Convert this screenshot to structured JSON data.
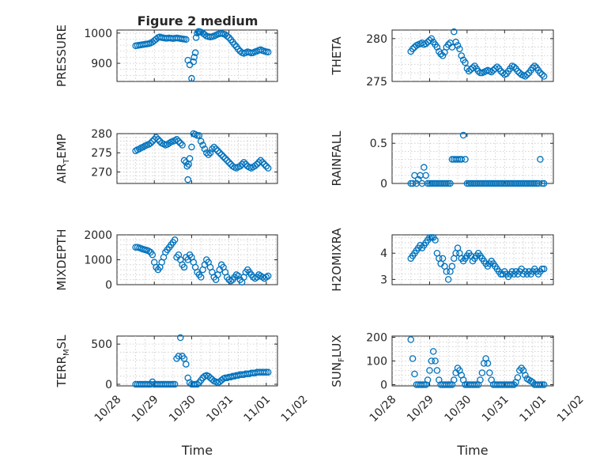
{
  "figure": {
    "title": "Figure 2 medium"
  },
  "chart_data": [
    {
      "type": "scatter",
      "id": "pressure",
      "title": "Figure 2 medium",
      "ylabel": "PRESSURE",
      "xlabel": "",
      "ylim": [
        840,
        1010
      ],
      "yticks": [
        900,
        1000
      ],
      "xlim": [
        0,
        4.3
      ],
      "grid": true,
      "x": [
        0.5,
        0.55,
        0.6,
        0.65,
        0.7,
        0.75,
        0.8,
        0.85,
        0.9,
        0.95,
        1.0,
        1.05,
        1.1,
        1.15,
        1.2,
        1.25,
        1.3,
        1.35,
        1.4,
        1.45,
        1.5,
        1.55,
        1.6,
        1.65,
        1.7,
        1.75,
        1.8,
        1.85,
        1.9,
        1.95,
        2.0,
        2.05,
        2.07,
        2.1,
        2.12,
        2.15,
        2.18,
        2.2,
        2.22,
        2.25,
        2.3,
        2.35,
        2.4,
        2.45,
        2.5,
        2.55,
        2.6,
        2.65,
        2.7,
        2.75,
        2.8,
        2.85,
        2.9,
        2.95,
        3.0,
        3.05,
        3.1,
        3.15,
        3.2,
        3.25,
        3.3,
        3.35,
        3.4,
        3.45,
        3.5,
        3.55,
        3.6,
        3.65,
        3.7,
        3.75,
        3.8,
        3.85,
        3.9,
        3.95,
        4.0,
        4.05
      ],
      "y": [
        958,
        959,
        960,
        961,
        962,
        963,
        964,
        965,
        967,
        970,
        975,
        980,
        985,
        987,
        985,
        984,
        983,
        983,
        984,
        983,
        982,
        983,
        984,
        983,
        982,
        981,
        980,
        979,
        910,
        895,
        850,
        905,
        920,
        935,
        985,
        1000,
        1005,
        1005,
        1004,
        1003,
        1000,
        995,
        990,
        988,
        987,
        988,
        990,
        993,
        996,
        998,
        999,
        997,
        995,
        990,
        985,
        978,
        970,
        962,
        955,
        947,
        940,
        935,
        933,
        935,
        938,
        936,
        934,
        935,
        938,
        940,
        943,
        945,
        942,
        940,
        938,
        937
      ]
    },
    {
      "type": "scatter",
      "id": "theta",
      "title": "",
      "ylabel": "THETA",
      "xlabel": "",
      "ylim": [
        275,
        281
      ],
      "yticks": [
        275,
        280
      ],
      "xlim": [
        0,
        4.3
      ],
      "grid": true,
      "x": [
        0.5,
        0.55,
        0.6,
        0.65,
        0.7,
        0.75,
        0.8,
        0.85,
        0.9,
        0.95,
        1.0,
        1.05,
        1.1,
        1.15,
        1.2,
        1.25,
        1.3,
        1.35,
        1.4,
        1.45,
        1.5,
        1.55,
        1.6,
        1.65,
        1.7,
        1.75,
        1.8,
        1.85,
        1.9,
        1.95,
        2.0,
        2.05,
        2.1,
        2.15,
        2.2,
        2.25,
        2.3,
        2.35,
        2.4,
        2.45,
        2.5,
        2.55,
        2.6,
        2.65,
        2.7,
        2.75,
        2.8,
        2.85,
        2.9,
        2.95,
        3.0,
        3.05,
        3.1,
        3.15,
        3.2,
        3.25,
        3.3,
        3.35,
        3.4,
        3.45,
        3.5,
        3.55,
        3.6,
        3.65,
        3.7,
        3.75,
        3.8,
        3.85,
        3.9,
        3.95,
        4.0,
        4.05
      ],
      "y": [
        278.5,
        278.8,
        279.0,
        279.2,
        279.3,
        279.4,
        279.5,
        279.3,
        279.4,
        279.6,
        279.8,
        280.0,
        279.6,
        279.3,
        279.0,
        278.5,
        278.2,
        278.0,
        278.4,
        279.0,
        279.3,
        279.5,
        279.0,
        280.8,
        279.6,
        279.2,
        278.8,
        278.0,
        277.5,
        277.2,
        276.5,
        276.2,
        276.4,
        276.6,
        276.8,
        276.5,
        276.2,
        276.0,
        276.0,
        276.1,
        276.2,
        276.3,
        276.2,
        276.1,
        276.3,
        276.5,
        276.7,
        276.5,
        276.2,
        276.0,
        275.8,
        275.9,
        276.2,
        276.5,
        276.8,
        276.7,
        276.5,
        276.2,
        276.0,
        275.8,
        275.7,
        275.6,
        275.8,
        276.0,
        276.3,
        276.6,
        276.8,
        276.6,
        276.3,
        276.0,
        275.8,
        275.6
      ]
    },
    {
      "type": "scatter",
      "id": "air-temp",
      "title": "",
      "ylabel": "AIR",
      "ylabel_sub": "T",
      "ylabel_rest": "EMP",
      "xlabel": "",
      "ylim": [
        267,
        280
      ],
      "yticks": [
        270,
        275,
        280
      ],
      "xlim": [
        0,
        4.3
      ],
      "grid": true,
      "x": [
        0.5,
        0.55,
        0.6,
        0.65,
        0.7,
        0.75,
        0.8,
        0.85,
        0.9,
        0.95,
        1.0,
        1.05,
        1.1,
        1.15,
        1.2,
        1.25,
        1.3,
        1.35,
        1.4,
        1.45,
        1.5,
        1.55,
        1.6,
        1.65,
        1.7,
        1.75,
        1.8,
        1.85,
        1.88,
        1.9,
        1.92,
        1.95,
        2.0,
        2.05,
        2.1,
        2.15,
        2.2,
        2.25,
        2.3,
        2.35,
        2.4,
        2.45,
        2.5,
        2.55,
        2.6,
        2.65,
        2.7,
        2.75,
        2.8,
        2.85,
        2.9,
        2.95,
        3.0,
        3.05,
        3.1,
        3.15,
        3.2,
        3.25,
        3.3,
        3.35,
        3.4,
        3.45,
        3.5,
        3.55,
        3.6,
        3.65,
        3.7,
        3.75,
        3.8,
        3.85,
        3.9,
        3.95,
        4.0,
        4.05
      ],
      "y": [
        275.5,
        275.8,
        276.0,
        276.3,
        276.5,
        276.8,
        277.0,
        277.2,
        277.5,
        278.0,
        278.5,
        279.0,
        278.5,
        278.0,
        277.5,
        277.3,
        277.0,
        277.2,
        277.5,
        277.8,
        278.0,
        278.2,
        278.5,
        278.0,
        277.5,
        277.0,
        273.0,
        272.5,
        271.5,
        268.0,
        272.0,
        273.5,
        276.5,
        280.0,
        279.8,
        279.5,
        279.5,
        278.0,
        277.0,
        276.0,
        275.0,
        274.5,
        275.0,
        276.0,
        276.5,
        276.0,
        275.5,
        275.0,
        274.5,
        274.0,
        273.5,
        273.0,
        272.5,
        272.0,
        271.5,
        271.2,
        271.0,
        271.3,
        271.5,
        272.0,
        272.5,
        272.0,
        271.5,
        271.2,
        271.0,
        271.3,
        271.6,
        272.0,
        272.5,
        273.0,
        272.5,
        272.0,
        271.5,
        271.0
      ]
    },
    {
      "type": "scatter",
      "id": "rainfall",
      "title": "",
      "ylabel": "RAINFALL",
      "xlabel": "",
      "ylim": [
        0,
        0.62
      ],
      "yticks": [
        0,
        0.5
      ],
      "xlim": [
        0,
        4.3
      ],
      "grid": true,
      "x": [
        0.5,
        0.55,
        0.6,
        0.65,
        0.7,
        0.75,
        0.8,
        0.85,
        0.9,
        0.95,
        1.0,
        1.05,
        1.1,
        1.15,
        1.2,
        1.25,
        1.3,
        1.35,
        1.4,
        1.45,
        1.5,
        1.55,
        1.6,
        1.65,
        1.7,
        1.75,
        1.8,
        1.85,
        1.9,
        1.95,
        2.0,
        2.05,
        2.1,
        2.15,
        2.2,
        2.25,
        2.3,
        2.35,
        2.4,
        2.45,
        2.5,
        2.55,
        2.6,
        2.65,
        2.7,
        2.75,
        2.8,
        2.85,
        2.9,
        2.95,
        3.0,
        3.05,
        3.1,
        3.15,
        3.2,
        3.25,
        3.3,
        3.35,
        3.4,
        3.45,
        3.5,
        3.55,
        3.6,
        3.65,
        3.7,
        3.75,
        3.8,
        3.85,
        3.9,
        3.95,
        4.0,
        4.05
      ],
      "y": [
        0,
        0,
        0.1,
        0,
        0.05,
        0.1,
        0,
        0.2,
        0.1,
        0,
        0,
        0,
        0,
        0,
        0,
        0,
        0,
        0,
        0,
        0,
        0,
        0,
        0.3,
        0.3,
        0.3,
        0.3,
        0.3,
        0.3,
        0.6,
        0.3,
        0,
        0,
        0,
        0,
        0,
        0,
        0,
        0,
        0,
        0,
        0,
        0,
        0,
        0,
        0,
        0,
        0,
        0,
        0,
        0,
        0,
        0,
        0,
        0,
        0,
        0,
        0,
        0,
        0,
        0,
        0,
        0,
        0,
        0,
        0,
        0,
        0,
        0,
        0,
        0.3,
        0,
        0
      ]
    },
    {
      "type": "scatter",
      "id": "mixdepth",
      "title": "",
      "ylabel": "MIXDEPTH",
      "xlabel": "",
      "ylim": [
        0,
        2000
      ],
      "yticks": [
        0,
        1000,
        2000
      ],
      "xlim": [
        0,
        4.3
      ],
      "grid": true,
      "x": [
        0.5,
        0.55,
        0.6,
        0.65,
        0.7,
        0.75,
        0.8,
        0.85,
        0.9,
        0.95,
        1.0,
        1.05,
        1.1,
        1.15,
        1.2,
        1.25,
        1.3,
        1.35,
        1.4,
        1.45,
        1.5,
        1.55,
        1.6,
        1.65,
        1.7,
        1.75,
        1.8,
        1.85,
        1.9,
        1.95,
        2.0,
        2.05,
        2.1,
        2.15,
        2.2,
        2.25,
        2.3,
        2.35,
        2.4,
        2.45,
        2.5,
        2.55,
        2.6,
        2.65,
        2.7,
        2.75,
        2.8,
        2.85,
        2.9,
        2.95,
        3.0,
        3.05,
        3.1,
        3.15,
        3.2,
        3.25,
        3.3,
        3.35,
        3.4,
        3.45,
        3.5,
        3.55,
        3.6,
        3.65,
        3.7,
        3.75,
        3.8,
        3.85,
        3.9,
        3.95,
        4.0,
        4.05
      ],
      "y": [
        1500,
        1500,
        1480,
        1450,
        1420,
        1400,
        1380,
        1350,
        1300,
        1200,
        900,
        700,
        600,
        700,
        900,
        1100,
        1300,
        1400,
        1500,
        1600,
        1700,
        1800,
        1100,
        1200,
        1000,
        800,
        700,
        1100,
        1000,
        1200,
        1100,
        900,
        700,
        500,
        400,
        300,
        600,
        800,
        1000,
        900,
        700,
        500,
        300,
        200,
        400,
        600,
        800,
        700,
        500,
        300,
        200,
        150,
        200,
        300,
        400,
        350,
        200,
        100,
        300,
        500,
        600,
        500,
        400,
        300,
        250,
        300,
        400,
        350,
        300,
        250,
        300,
        350
      ]
    },
    {
      "type": "scatter",
      "id": "h2omixra",
      "title": "",
      "ylabel": "H2OMIXRA",
      "xlabel": "",
      "ylim": [
        2.8,
        4.7
      ],
      "yticks": [
        3,
        4
      ],
      "xlim": [
        0,
        4.3
      ],
      "grid": true,
      "x": [
        0.5,
        0.55,
        0.6,
        0.65,
        0.7,
        0.75,
        0.8,
        0.85,
        0.9,
        0.95,
        1.0,
        1.05,
        1.1,
        1.15,
        1.2,
        1.25,
        1.3,
        1.35,
        1.4,
        1.45,
        1.5,
        1.55,
        1.6,
        1.65,
        1.7,
        1.75,
        1.8,
        1.85,
        1.9,
        1.95,
        2.0,
        2.05,
        2.1,
        2.15,
        2.2,
        2.25,
        2.3,
        2.35,
        2.4,
        2.45,
        2.5,
        2.55,
        2.6,
        2.65,
        2.7,
        2.75,
        2.8,
        2.85,
        2.9,
        2.95,
        3.0,
        3.05,
        3.1,
        3.15,
        3.2,
        3.25,
        3.3,
        3.35,
        3.4,
        3.45,
        3.5,
        3.55,
        3.6,
        3.65,
        3.7,
        3.75,
        3.8,
        3.85,
        3.9,
        3.95,
        4.0,
        4.05
      ],
      "y": [
        3.8,
        3.9,
        4.0,
        4.1,
        4.2,
        4.3,
        4.2,
        4.3,
        4.4,
        4.5,
        4.6,
        4.6,
        4.6,
        4.5,
        4.0,
        3.8,
        3.6,
        3.8,
        3.5,
        3.3,
        3.0,
        3.3,
        3.5,
        3.8,
        4.0,
        4.2,
        4.0,
        3.8,
        3.7,
        3.8,
        3.9,
        4.0,
        3.9,
        3.7,
        3.8,
        3.9,
        4.0,
        3.9,
        3.8,
        3.7,
        3.6,
        3.5,
        3.6,
        3.7,
        3.6,
        3.5,
        3.4,
        3.3,
        3.2,
        3.2,
        3.3,
        3.2,
        3.1,
        3.2,
        3.3,
        3.2,
        3.3,
        3.2,
        3.3,
        3.4,
        3.2,
        3.3,
        3.2,
        3.3,
        3.2,
        3.3,
        3.4,
        3.3,
        3.2,
        3.3,
        3.4,
        3.4
      ]
    },
    {
      "type": "scatter",
      "id": "terr-msl",
      "title": "",
      "ylabel": "TERR",
      "ylabel_sub": "M",
      "ylabel_rest": "SL",
      "xlabel": "Time",
      "ylim": [
        -20,
        600
      ],
      "yticks": [
        0,
        500
      ],
      "xlim": [
        0,
        4.3
      ],
      "xticklabels": [
        "10/28",
        "10/29",
        "10/30",
        "10/31",
        "11/01",
        "11/02"
      ],
      "grid": true,
      "x": [
        0.5,
        0.55,
        0.6,
        0.65,
        0.7,
        0.75,
        0.8,
        0.85,
        0.9,
        0.95,
        1.0,
        1.05,
        1.1,
        1.15,
        1.2,
        1.25,
        1.3,
        1.35,
        1.4,
        1.45,
        1.5,
        1.55,
        1.6,
        1.65,
        1.7,
        1.75,
        1.8,
        1.85,
        1.9,
        1.95,
        2.0,
        2.05,
        2.1,
        2.15,
        2.2,
        2.25,
        2.3,
        2.35,
        2.4,
        2.45,
        2.5,
        2.55,
        2.6,
        2.65,
        2.7,
        2.75,
        2.8,
        2.85,
        2.9,
        2.95,
        3.0,
        3.05,
        3.1,
        3.15,
        3.2,
        3.25,
        3.3,
        3.35,
        3.4,
        3.45,
        3.5,
        3.55,
        3.6,
        3.65,
        3.7,
        3.75,
        3.8,
        3.85,
        3.9,
        3.95,
        4.0,
        4.05
      ],
      "y": [
        0,
        0,
        0,
        0,
        0,
        0,
        0,
        0,
        0,
        30,
        0,
        0,
        0,
        0,
        0,
        0,
        0,
        0,
        0,
        0,
        0,
        0,
        320,
        350,
        580,
        350,
        320,
        250,
        80,
        20,
        0,
        0,
        0,
        0,
        20,
        50,
        80,
        100,
        110,
        100,
        80,
        60,
        40,
        30,
        20,
        30,
        50,
        70,
        80,
        80,
        90,
        90,
        100,
        100,
        110,
        110,
        120,
        120,
        120,
        130,
        130,
        130,
        140,
        140,
        140,
        150,
        150,
        150,
        150,
        150,
        150,
        150
      ]
    },
    {
      "type": "scatter",
      "id": "sun-flux",
      "title": "",
      "ylabel": "SUN",
      "ylabel_sub": "F",
      "ylabel_rest": "LUX",
      "xlabel": "Time",
      "ylim": [
        -5,
        205
      ],
      "yticks": [
        0,
        100,
        200
      ],
      "xlim": [
        0,
        4.3
      ],
      "xticklabels": [
        "10/28",
        "10/29",
        "10/30",
        "10/31",
        "11/01",
        "11/02"
      ],
      "grid": true,
      "x": [
        0.5,
        0.55,
        0.6,
        0.65,
        0.7,
        0.75,
        0.8,
        0.85,
        0.9,
        0.95,
        1.0,
        1.05,
        1.1,
        1.15,
        1.2,
        1.25,
        1.3,
        1.35,
        1.4,
        1.45,
        1.5,
        1.55,
        1.6,
        1.65,
        1.7,
        1.75,
        1.8,
        1.85,
        1.9,
        1.95,
        2.0,
        2.05,
        2.1,
        2.15,
        2.2,
        2.25,
        2.3,
        2.35,
        2.4,
        2.45,
        2.5,
        2.55,
        2.6,
        2.65,
        2.7,
        2.75,
        2.8,
        2.85,
        2.9,
        2.95,
        3.0,
        3.05,
        3.1,
        3.15,
        3.2,
        3.25,
        3.3,
        3.35,
        3.4,
        3.45,
        3.5,
        3.55,
        3.6,
        3.65,
        3.7,
        3.75,
        3.8,
        3.85,
        3.9,
        3.95,
        4.0,
        4.05
      ],
      "y": [
        190,
        110,
        45,
        0,
        0,
        0,
        0,
        0,
        0,
        20,
        60,
        100,
        140,
        100,
        60,
        20,
        0,
        0,
        0,
        0,
        0,
        0,
        0,
        20,
        50,
        70,
        60,
        40,
        20,
        0,
        0,
        0,
        0,
        0,
        0,
        0,
        0,
        20,
        50,
        90,
        110,
        90,
        50,
        20,
        0,
        0,
        0,
        0,
        0,
        0,
        0,
        0,
        0,
        0,
        0,
        0,
        10,
        30,
        60,
        70,
        60,
        40,
        25,
        20,
        15,
        10,
        0,
        0,
        0,
        0,
        0,
        0
      ]
    }
  ]
}
